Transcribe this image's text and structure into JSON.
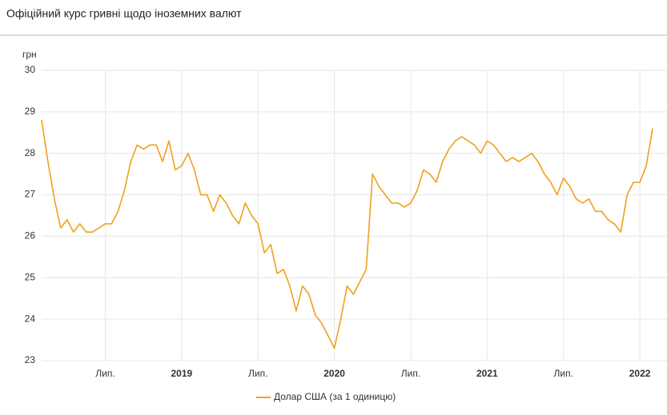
{
  "chart_data": {
    "type": "line",
    "title": "Офіційний курс гривні щодо іноземних валют",
    "y_label": "грн",
    "categories": [
      null,
      null,
      null,
      null,
      null,
      null,
      null,
      null,
      null,
      null,
      "Лип.",
      null,
      null,
      null,
      null,
      null,
      null,
      null,
      null,
      null,
      null,
      null,
      "2019",
      null,
      null,
      null,
      null,
      null,
      null,
      null,
      null,
      null,
      null,
      null,
      "Лип.",
      null,
      null,
      null,
      null,
      null,
      null,
      null,
      null,
      null,
      null,
      null,
      "2020",
      null,
      null,
      null,
      null,
      null,
      null,
      null,
      null,
      null,
      null,
      null,
      "Лип.",
      null,
      null,
      null,
      null,
      null,
      null,
      null,
      null,
      null,
      null,
      null,
      "2021",
      null,
      null,
      null,
      null,
      null,
      null,
      null,
      null,
      null,
      null,
      null,
      "Лип.",
      null,
      null,
      null,
      null,
      null,
      null,
      null,
      null,
      null,
      null,
      null,
      "2022",
      null,
      null
    ],
    "series": [
      {
        "name": "Долар США (за 1 одиницю)",
        "color": "#f0a01c",
        "values": [
          28.8,
          27.8,
          26.9,
          26.2,
          26.4,
          26.1,
          26.3,
          26.1,
          26.1,
          26.2,
          26.3,
          26.3,
          26.6,
          27.1,
          27.8,
          28.2,
          28.1,
          28.2,
          28.2,
          27.8,
          28.3,
          27.6,
          27.7,
          28.0,
          27.6,
          27.0,
          27.0,
          26.6,
          27.0,
          26.8,
          26.5,
          26.3,
          26.8,
          26.5,
          26.3,
          25.6,
          25.8,
          25.1,
          25.2,
          24.8,
          24.2,
          24.8,
          24.6,
          24.1,
          23.9,
          23.6,
          23.3,
          24.0,
          24.8,
          24.6,
          24.9,
          25.2,
          27.5,
          27.2,
          27.0,
          26.8,
          26.8,
          26.7,
          26.8,
          27.1,
          27.6,
          27.5,
          27.3,
          27.8,
          28.1,
          28.3,
          28.4,
          28.3,
          28.2,
          28.0,
          28.3,
          28.2,
          28.0,
          27.8,
          27.9,
          27.8,
          27.9,
          28.0,
          27.8,
          27.5,
          27.3,
          27.0,
          27.4,
          27.2,
          26.9,
          26.8,
          26.9,
          26.6,
          26.6,
          26.4,
          26.3,
          26.1,
          27.0,
          27.3,
          27.3,
          27.7,
          28.6
        ]
      }
    ],
    "ylim": [
      23,
      30
    ],
    "yticks": [
      23,
      24,
      25,
      26,
      27,
      28,
      29,
      30
    ],
    "grid": true
  }
}
